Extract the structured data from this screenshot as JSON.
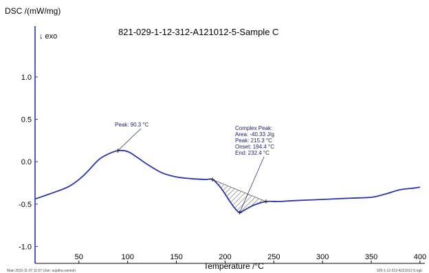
{
  "chart_data": {
    "type": "line",
    "title": "821-029-1-12-312-A121012-5-Sample C",
    "ylabel": "DSC /(mW/mg)",
    "xlabel": "Temperature /°C",
    "direction_label": "↓ exo",
    "xlim": [
      5,
      405
    ],
    "ylim": [
      -1.2,
      1.6
    ],
    "x_ticks": [
      50,
      100,
      150,
      200,
      250,
      300,
      350,
      400
    ],
    "y_ticks": [
      1.0,
      0.5,
      0.0,
      -0.5,
      -1.0
    ],
    "x_tick_labels": [
      "50",
      "100",
      "150",
      "200",
      "250",
      "300",
      "350",
      "400"
    ],
    "y_tick_labels": [
      "1.0",
      "0.5",
      "0.0",
      "-0.5",
      "-1.0"
    ],
    "grid": false,
    "series": [
      {
        "color": "#2a34a8",
        "x": [
          5,
          20,
          40,
          55,
          70,
          80,
          90,
          100,
          110,
          120,
          135,
          150,
          165,
          180,
          187,
          195,
          205,
          210,
          215,
          220,
          230,
          242,
          255,
          270,
          290,
          310,
          330,
          350,
          365,
          380,
          395,
          400
        ],
        "y": [
          -0.44,
          -0.38,
          -0.29,
          -0.16,
          0.02,
          0.09,
          0.13,
          0.12,
          0.05,
          -0.03,
          -0.13,
          -0.18,
          -0.2,
          -0.21,
          -0.21,
          -0.3,
          -0.47,
          -0.55,
          -0.6,
          -0.57,
          -0.51,
          -0.47,
          -0.47,
          -0.46,
          -0.45,
          -0.44,
          -0.43,
          -0.42,
          -0.38,
          -0.33,
          -0.31,
          -0.3
        ]
      }
    ],
    "peak_marker": {
      "x": 90,
      "y": 0.13
    },
    "complex_region": {
      "x_start": 187,
      "x_end": 242,
      "y_start": -0.21,
      "y_end": -0.47
    },
    "complex_markers": [
      {
        "x": 187,
        "y": -0.21
      },
      {
        "x": 215,
        "y": -0.6
      },
      {
        "x": 242,
        "y": -0.47
      }
    ],
    "annotations": {
      "peak1": "Peak: 90.3 °C",
      "complex_title": "Complex Peak:",
      "complex_area": "Area:    -40.33 J/g",
      "complex_peak": "Peak:   215.3 °C",
      "complex_onset": "Onset:  194.4 °C",
      "complex_end": "End:     232.4 °C"
    }
  },
  "footer": {
    "left": "Main   2012-11-07 11:57   User: sujatha.ramesh",
    "right": "029-1-12-312-A121012-5.ngb"
  }
}
